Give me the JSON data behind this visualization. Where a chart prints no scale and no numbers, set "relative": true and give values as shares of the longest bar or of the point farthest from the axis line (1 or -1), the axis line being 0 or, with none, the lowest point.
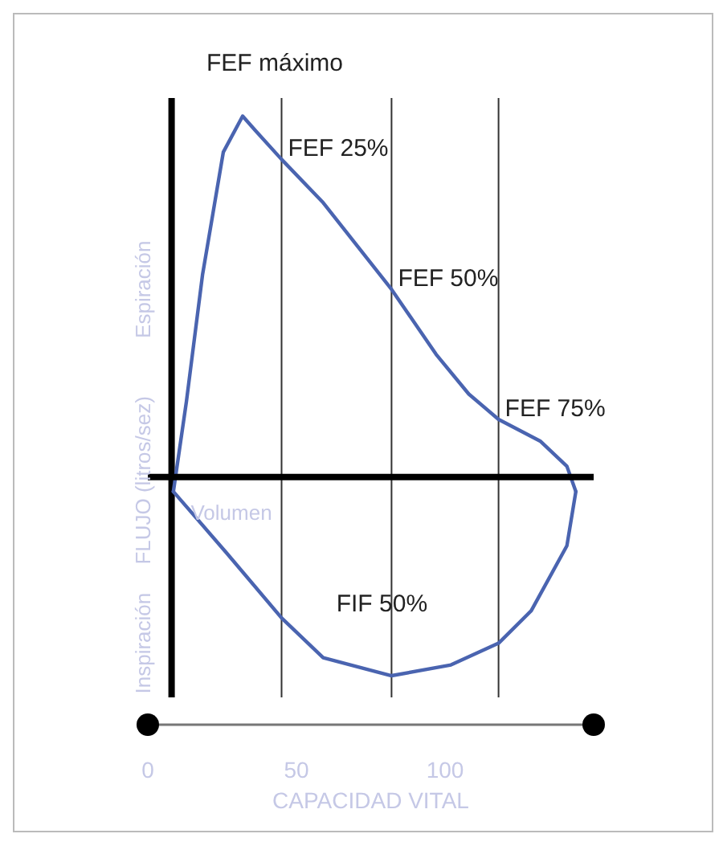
{
  "chart_data": {
    "type": "line",
    "relative": true,
    "xlabel": "CAPACIDAD VITAL",
    "ylabel": "FLUJO (litros/sez)",
    "series": [
      {
        "color": "#4a64b0",
        "x": [
          8.6,
          13,
          18.4,
          25.4,
          31.9,
          36.2,
          45,
          59,
          82,
          97,
          108,
          118,
          132,
          141,
          144
        ],
        "values": [
          -0.04,
          0.21,
          0.56,
          0.9,
          1.0,
          0.96,
          0.88,
          0.76,
          0.52,
          0.34,
          0.23,
          0.16,
          0.1,
          0.03,
          -0.04
        ]
      },
      {
        "color": "#4a64b0",
        "x": [
          8.6,
          26.5,
          45,
          59,
          82,
          102,
          118,
          129,
          141,
          144
        ],
        "values": [
          -0.04,
          -0.21,
          -0.39,
          -0.5,
          -0.55,
          -0.52,
          -0.46,
          -0.37,
          -0.19,
          -0.04
        ]
      }
    ],
    "xlim": [
      0,
      150
    ],
    "xticks": [
      0,
      50,
      100
    ],
    "marker": "none",
    "line_style": "solid",
    "ref_lines": [
      {
        "axis": "x",
        "value": 45,
        "color": "#333333"
      },
      {
        "axis": "x",
        "value": 82,
        "color": "#333333"
      },
      {
        "axis": "x",
        "value": 118,
        "color": "#333333"
      },
      {
        "axis": "x",
        "value": 8,
        "color": "#000000"
      }
    ],
    "annotations": [
      {
        "text": "FEF máximo",
        "x": 31.9,
        "y": 1.0
      },
      {
        "text": "FEF 25%",
        "x": 45,
        "y": 0.88
      },
      {
        "text": "FEF 50%",
        "x": 82,
        "y": 0.52
      },
      {
        "text": "FEF 75%",
        "x": 118,
        "y": 0.16
      },
      {
        "text": "FIF 50%",
        "x": 82,
        "y": -0.55
      },
      "Espiración",
      "Inspiración",
      "Volumen"
    ]
  }
}
